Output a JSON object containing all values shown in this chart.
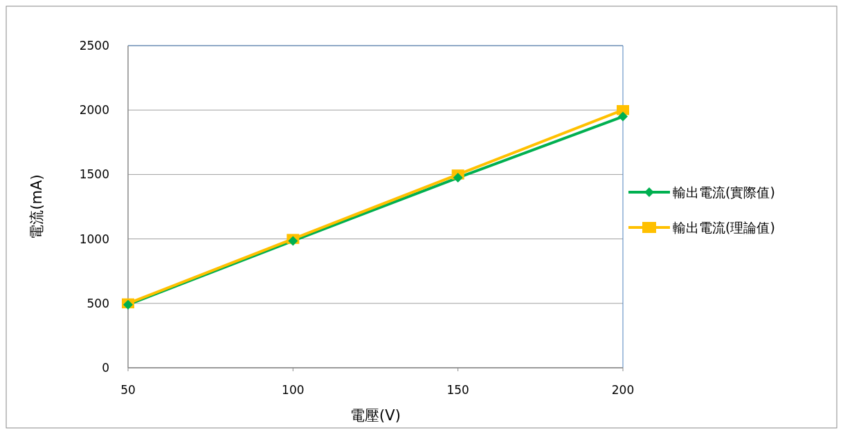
{
  "chart_data": {
    "type": "line",
    "xlabel": "電壓(V)",
    "ylabel": "電流(mA)",
    "x": [
      50,
      100,
      150,
      200
    ],
    "series": [
      {
        "name": "輸出電流(實際值)",
        "color": "#00b050",
        "marker": "diamond",
        "values": [
          490,
          985,
          1475,
          1950
        ]
      },
      {
        "name": "輸出電流(理論值)",
        "color": "#ffc000",
        "marker": "square",
        "values": [
          500,
          1000,
          1500,
          2000
        ]
      }
    ],
    "xlim": [
      50,
      200
    ],
    "xticks": [
      50,
      100,
      150,
      200
    ],
    "ylim": [
      0,
      2500
    ],
    "yticks": [
      0,
      500,
      1000,
      1500,
      2000,
      2500
    ],
    "grid": "y",
    "legend": "right",
    "line_style": "solid"
  }
}
